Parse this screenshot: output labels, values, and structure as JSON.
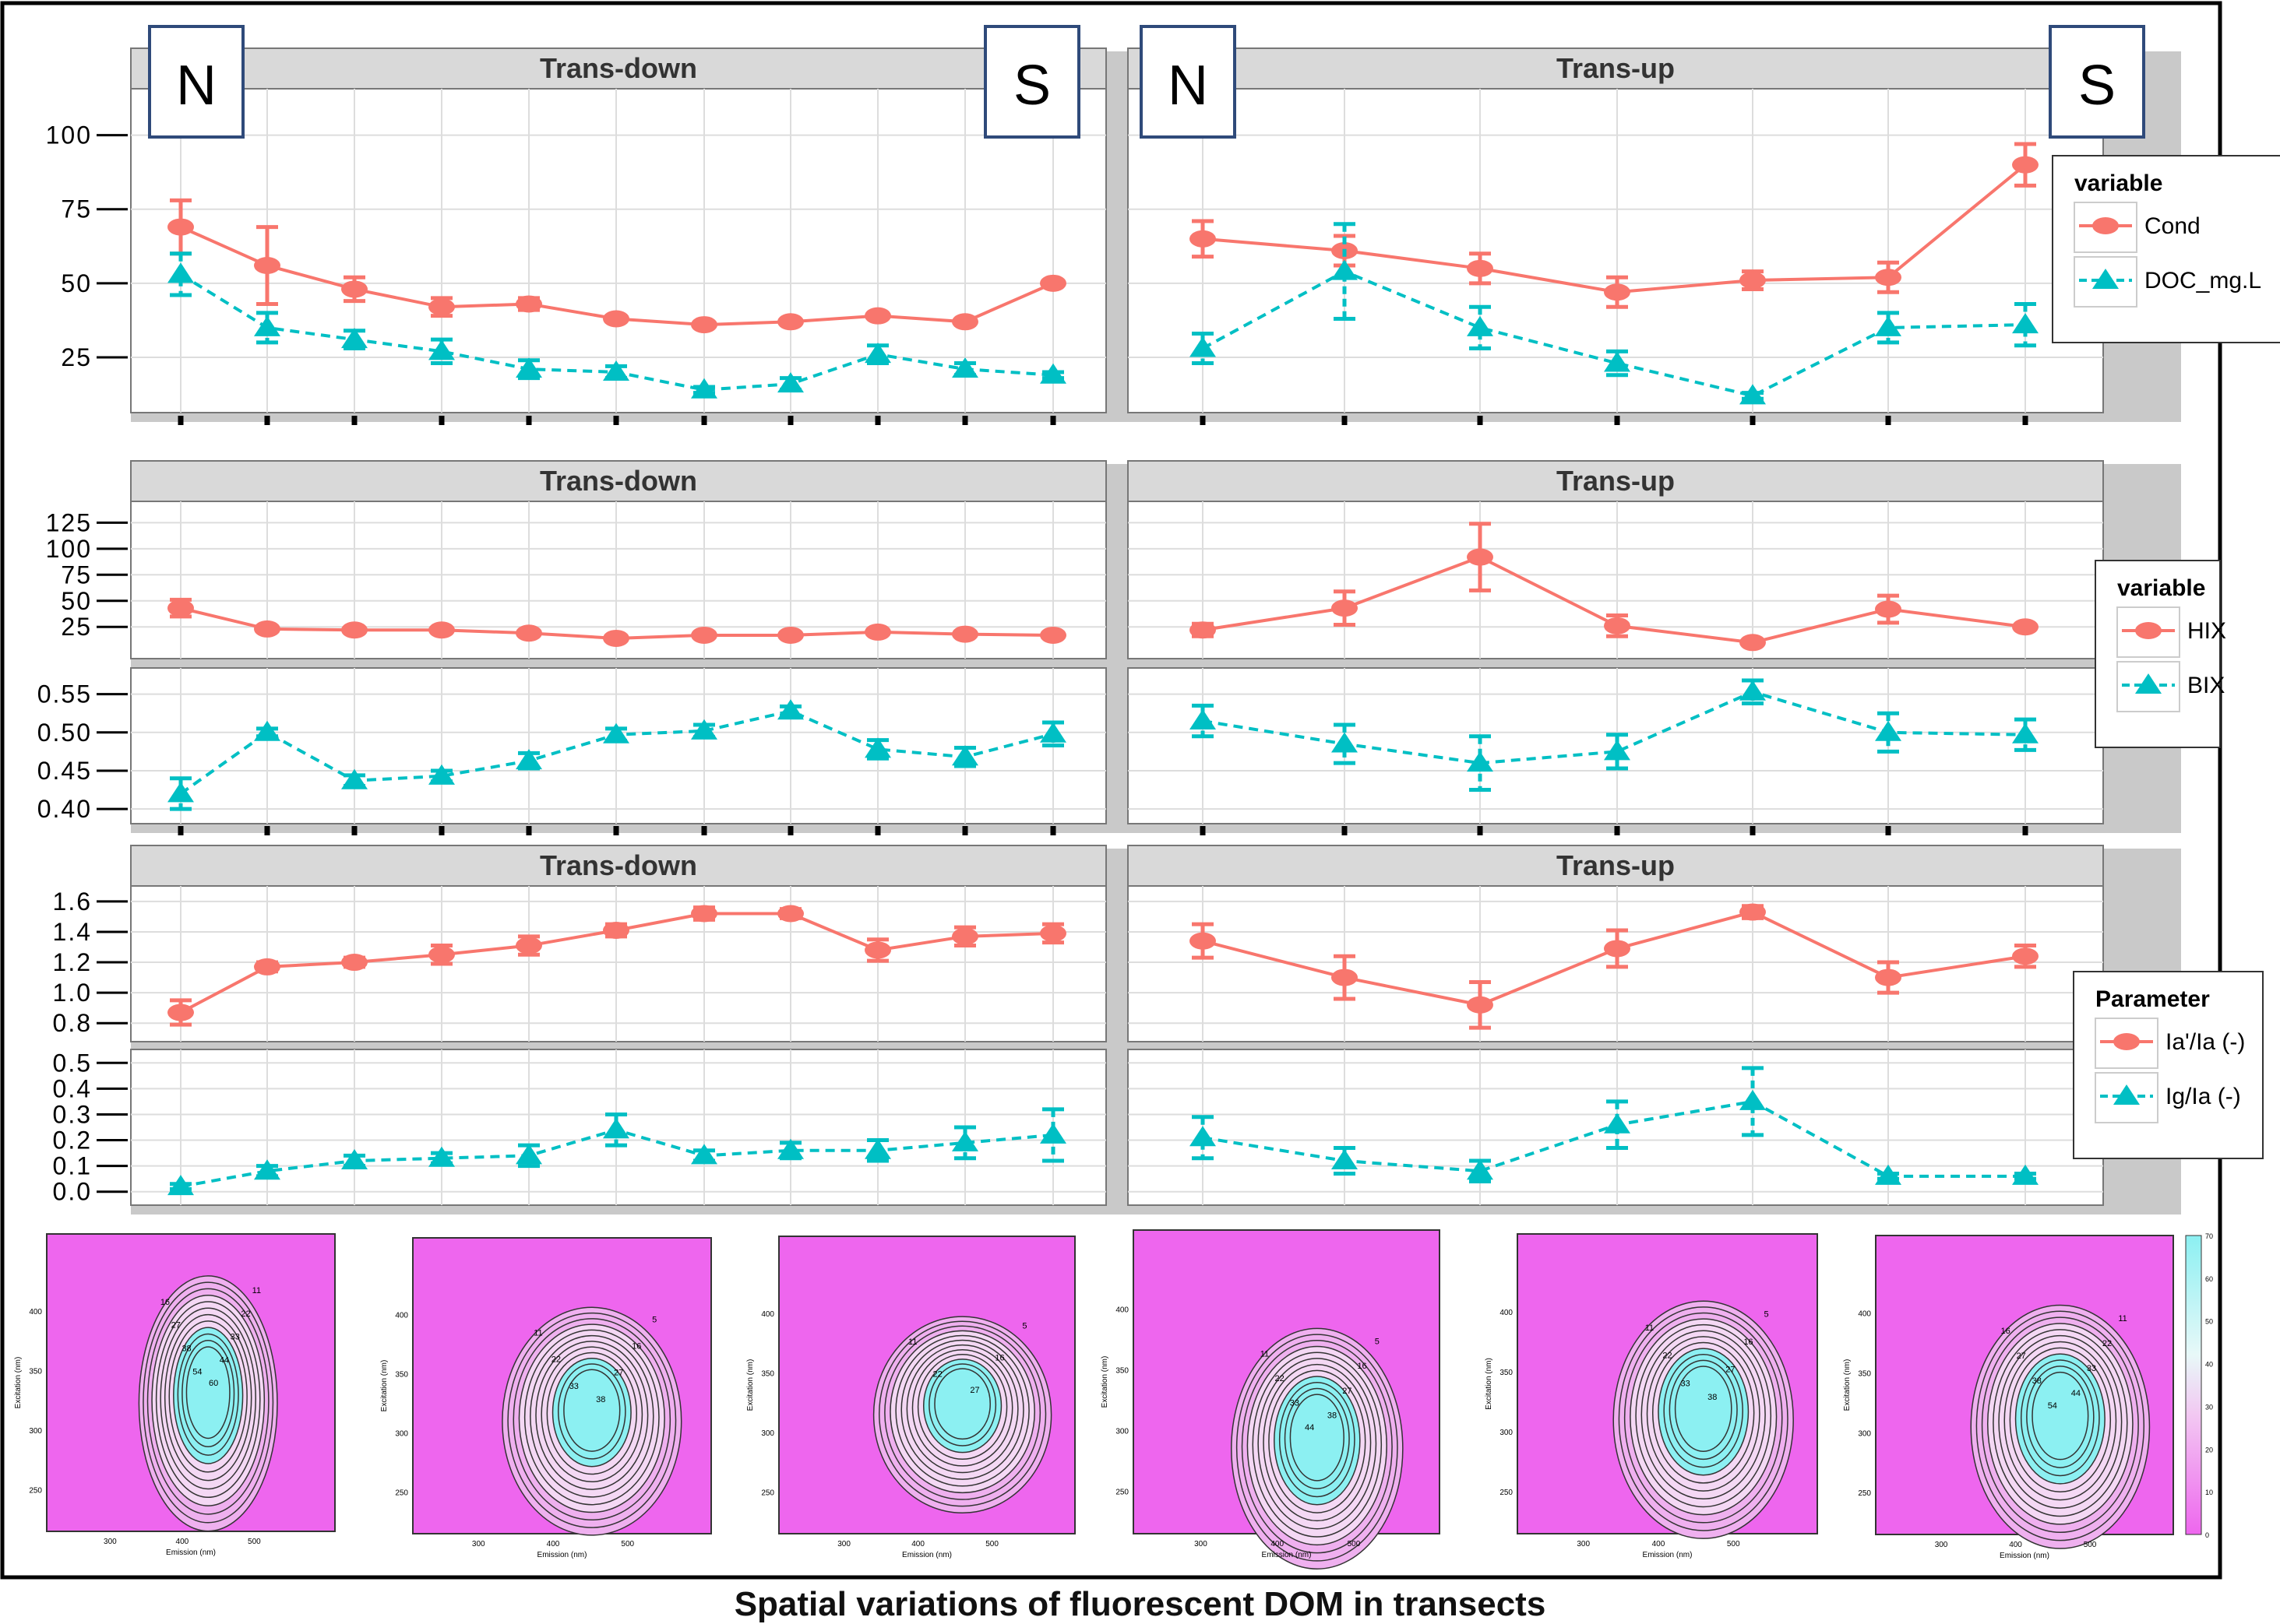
{
  "caption": "Spatial variations of fluorescent DOM in transects",
  "colors": {
    "series1": "#F8766D",
    "series2": "#00BFC4",
    "strip": "#D9D9D9",
    "panel_bg": "#FFFFFF",
    "grid": "#DDDDDD",
    "eem_bg": "#EE66EE",
    "eem_core": "#8CF0F2"
  },
  "marker_boxes": {
    "north": "N",
    "south": "S"
  },
  "rows": [
    {
      "legend": {
        "title": "variable",
        "items": [
          "Cond",
          "DOC_mg.L"
        ]
      },
      "facets": [
        {
          "strip": "Trans-down",
          "markers": [
            "N",
            "S"
          ]
        },
        {
          "strip": "Trans-up",
          "markers": [
            "N",
            "S"
          ]
        }
      ]
    },
    {
      "legend": {
        "title": "variable",
        "items": [
          "HIX",
          "BIX"
        ]
      },
      "facets": [
        {
          "strip": "Trans-down"
        },
        {
          "strip": "Trans-up"
        }
      ]
    },
    {
      "legend": {
        "title": "Parameter",
        "items": [
          "Ia'/Ia (-)",
          "Ig/Ia (-)"
        ]
      },
      "facets": [
        {
          "strip": "Trans-down"
        },
        {
          "strip": "Trans-up"
        }
      ]
    }
  ],
  "chart_data": [
    {
      "type": "line",
      "facet": "Trans-down",
      "panel": "Cond / DOC",
      "x": [
        1,
        2,
        3,
        4,
        5,
        6,
        7,
        8,
        9,
        10,
        11
      ],
      "yticks": [
        "25",
        "50",
        "75",
        "100"
      ],
      "ylim": [
        10,
        112
      ],
      "series": [
        {
          "name": "Cond",
          "values": [
            69,
            56,
            48,
            42,
            43,
            38,
            36,
            37,
            39,
            37,
            50
          ],
          "err": [
            9,
            13,
            4,
            3,
            2,
            1,
            1,
            1,
            1,
            1,
            1
          ]
        },
        {
          "name": "DOC_mg.L",
          "values": [
            53,
            35,
            31,
            27,
            21,
            20,
            14,
            16,
            26,
            21,
            19
          ],
          "err": [
            7,
            5,
            3,
            4,
            3,
            2,
            1,
            2,
            3,
            2,
            1
          ]
        }
      ]
    },
    {
      "type": "line",
      "facet": "Trans-up",
      "panel": "Cond / DOC",
      "x": [
        1,
        2,
        3,
        4,
        5,
        6,
        7
      ],
      "yticks": [
        "25",
        "50",
        "75",
        "100"
      ],
      "ylim": [
        10,
        112
      ],
      "series": [
        {
          "name": "Cond",
          "values": [
            65,
            61,
            55,
            47,
            51,
            52,
            90
          ],
          "err": [
            6,
            5,
            5,
            5,
            3,
            5,
            7
          ]
        },
        {
          "name": "DOC_mg.L",
          "values": [
            28,
            54,
            35,
            23,
            12,
            35,
            36
          ],
          "err": [
            5,
            16,
            7,
            4,
            1,
            5,
            7
          ]
        }
      ]
    },
    {
      "type": "line",
      "facet": "Trans-down",
      "panel": "HIX",
      "x": [
        1,
        2,
        3,
        4,
        5,
        6,
        7,
        8,
        9,
        10,
        11
      ],
      "yticks": [
        "25",
        "50",
        "75",
        "100",
        "125"
      ],
      "ylim": [
        5,
        135
      ],
      "series": [
        {
          "name": "HIX",
          "values": [
            43,
            23,
            22,
            22,
            19,
            14,
            17,
            17,
            20,
            18,
            17
          ],
          "err": [
            8,
            2,
            2,
            2,
            2,
            2,
            2,
            2,
            2,
            2,
            2
          ]
        }
      ]
    },
    {
      "type": "line",
      "facet": "Trans-up",
      "panel": "HIX",
      "x": [
        1,
        2,
        3,
        4,
        5,
        6,
        7
      ],
      "yticks": [
        "25",
        "50",
        "75",
        "100",
        "125"
      ],
      "ylim": [
        5,
        135
      ],
      "series": [
        {
          "name": "HIX",
          "values": [
            22,
            43,
            92,
            26,
            10,
            42,
            25
          ],
          "err": [
            6,
            16,
            32,
            10,
            2,
            13,
            2
          ]
        }
      ]
    },
    {
      "type": "line",
      "facet": "Trans-down",
      "panel": "BIX",
      "x": [
        1,
        2,
        3,
        4,
        5,
        6,
        7,
        8,
        9,
        10,
        11
      ],
      "yticks": [
        "0.40",
        "0.45",
        "0.50",
        "0.55"
      ],
      "ylim": [
        0.395,
        0.57
      ],
      "series": [
        {
          "name": "BIX",
          "values": [
            0.42,
            0.5,
            0.437,
            0.443,
            0.463,
            0.497,
            0.502,
            0.528,
            0.478,
            0.468,
            0.498
          ],
          "err": [
            0.02,
            0.005,
            0.007,
            0.007,
            0.01,
            0.008,
            0.008,
            0.006,
            0.012,
            0.012,
            0.015
          ]
        }
      ]
    },
    {
      "type": "line",
      "facet": "Trans-up",
      "panel": "BIX",
      "x": [
        1,
        2,
        3,
        4,
        5,
        6,
        7
      ],
      "yticks": [
        "0.40",
        "0.45",
        "0.50",
        "0.55"
      ],
      "ylim": [
        0.395,
        0.57
      ],
      "series": [
        {
          "name": "BIX",
          "values": [
            0.515,
            0.485,
            0.46,
            0.475,
            0.553,
            0.5,
            0.497
          ],
          "err": [
            0.02,
            0.025,
            0.035,
            0.022,
            0.015,
            0.025,
            0.02
          ]
        }
      ]
    },
    {
      "type": "line",
      "facet": "Trans-down",
      "panel": "Ia'/Ia",
      "x": [
        1,
        2,
        3,
        4,
        5,
        6,
        7,
        8,
        9,
        10,
        11
      ],
      "yticks": [
        "0.8",
        "1.0",
        "1.2",
        "1.4",
        "1.6"
      ],
      "ylim": [
        0.75,
        1.63
      ],
      "series": [
        {
          "name": "Ia'/Ia (-)",
          "values": [
            0.87,
            1.17,
            1.2,
            1.25,
            1.31,
            1.41,
            1.52,
            1.52,
            1.28,
            1.37,
            1.39
          ],
          "err": [
            0.08,
            0.03,
            0.03,
            0.06,
            0.06,
            0.04,
            0.04,
            0.03,
            0.07,
            0.06,
            0.06
          ]
        }
      ]
    },
    {
      "type": "line",
      "facet": "Trans-up",
      "panel": "Ia'/Ia",
      "x": [
        1,
        2,
        3,
        4,
        5,
        6,
        7
      ],
      "yticks": [
        "0.8",
        "1.0",
        "1.2",
        "1.4",
        "1.6"
      ],
      "ylim": [
        0.75,
        1.63
      ],
      "series": [
        {
          "name": "Ia'/Ia (-)",
          "values": [
            1.34,
            1.1,
            0.92,
            1.29,
            1.53,
            1.1,
            1.24
          ],
          "err": [
            0.11,
            0.14,
            0.15,
            0.12,
            0.04,
            0.1,
            0.07
          ]
        }
      ]
    },
    {
      "type": "line",
      "facet": "Trans-down",
      "panel": "Ig/Ia",
      "x": [
        1,
        2,
        3,
        4,
        5,
        6,
        7,
        8,
        9,
        10,
        11
      ],
      "yticks": [
        "0.0",
        "0.1",
        "0.2",
        "0.3",
        "0.4",
        "0.5"
      ],
      "ylim": [
        -0.01,
        0.51
      ],
      "series": [
        {
          "name": "Ig/Ia (-)",
          "values": [
            0.02,
            0.08,
            0.12,
            0.13,
            0.14,
            0.24,
            0.14,
            0.16,
            0.16,
            0.19,
            0.22
          ],
          "err": [
            0.01,
            0.02,
            0.02,
            0.02,
            0.04,
            0.06,
            0.02,
            0.03,
            0.04,
            0.06,
            0.1
          ]
        }
      ]
    },
    {
      "type": "line",
      "facet": "Trans-up",
      "panel": "Ig/Ia",
      "x": [
        1,
        2,
        3,
        4,
        5,
        6,
        7
      ],
      "yticks": [
        "0.0",
        "0.1",
        "0.2",
        "0.3",
        "0.4",
        "0.5"
      ],
      "ylim": [
        -0.01,
        0.51
      ],
      "series": [
        {
          "name": "Ig/Ia (-)",
          "values": [
            0.21,
            0.12,
            0.08,
            0.26,
            0.35,
            0.06,
            0.06
          ],
          "err": [
            0.08,
            0.05,
            0.04,
            0.09,
            0.13,
            0.01,
            0.01
          ]
        }
      ]
    },
    {
      "type": "heatmap",
      "panel": "EEM contour maps",
      "maps": [
        {
          "x_label": "Emission (nm)",
          "y_label": "Excitation (nm)",
          "x_ticks": [
            "300",
            "400",
            "500"
          ],
          "y_ticks": [
            "250",
            "300",
            "350",
            "400"
          ],
          "contour_labels": [
            "11",
            "16",
            "22",
            "27",
            "33",
            "38",
            "44",
            "54",
            "60"
          ]
        },
        {
          "x_label": "Emission (nm)",
          "y_label": "Excitation (nm)",
          "x_ticks": [
            "300",
            "400",
            "500"
          ],
          "y_ticks": [
            "250",
            "300",
            "350",
            "400"
          ],
          "contour_labels": [
            "5",
            "11",
            "16",
            "22",
            "27",
            "33",
            "38"
          ]
        },
        {
          "x_label": "Emission (nm)",
          "y_label": "Excitation (nm)",
          "x_ticks": [
            "300",
            "400",
            "500"
          ],
          "y_ticks": [
            "250",
            "300",
            "350",
            "400"
          ],
          "contour_labels": [
            "5",
            "11",
            "16",
            "22",
            "27"
          ]
        },
        {
          "x_label": "Emission (nm)",
          "y_label": "Excitation (nm)",
          "x_ticks": [
            "300",
            "400",
            "500"
          ],
          "y_ticks": [
            "250",
            "300",
            "350",
            "400"
          ],
          "contour_labels": [
            "5",
            "11",
            "16",
            "22",
            "27",
            "33",
            "38",
            "44"
          ]
        },
        {
          "x_label": "Emission (nm)",
          "y_label": "Excitation (nm)",
          "x_ticks": [
            "300",
            "400",
            "500"
          ],
          "y_ticks": [
            "250",
            "300",
            "350",
            "400"
          ],
          "contour_labels": [
            "5",
            "11",
            "16",
            "22",
            "27",
            "33",
            "38"
          ]
        },
        {
          "x_label": "Emission (nm)",
          "y_label": "Excitation (nm)",
          "x_ticks": [
            "300",
            "400",
            "500"
          ],
          "y_ticks": [
            "250",
            "300",
            "350",
            "400"
          ],
          "contour_labels": [
            "11",
            "16",
            "22",
            "27",
            "33",
            "38",
            "44",
            "54"
          ]
        }
      ],
      "colorbar_ticks": [
        "0",
        "10",
        "20",
        "30",
        "40",
        "50",
        "60",
        "70"
      ]
    }
  ]
}
